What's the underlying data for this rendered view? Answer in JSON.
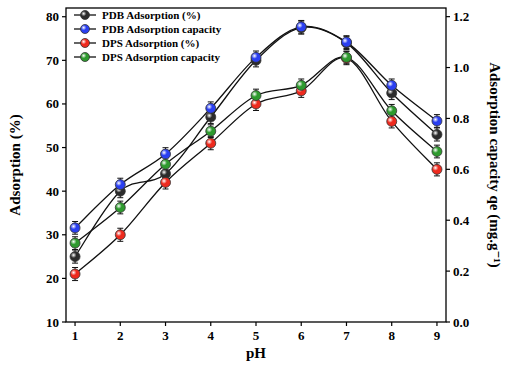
{
  "chart_data": {
    "type": "line",
    "x_label": "pH",
    "y_label": "Adsorption (%)",
    "y2_label": "Adsorption capacity qe (mg.g⁻¹)",
    "x": [
      1,
      2,
      3,
      4,
      5,
      6,
      7,
      8,
      9
    ],
    "xlim": [
      0.8,
      9.2
    ],
    "xticks": [
      1,
      2,
      3,
      4,
      5,
      6,
      7,
      8,
      9
    ],
    "ylim": [
      10,
      82
    ],
    "yticks": [
      10,
      20,
      30,
      40,
      50,
      60,
      70,
      80
    ],
    "y2lim": [
      0,
      1.234
    ],
    "y2ticks": [
      {
        "value": 0,
        "label": "0.0"
      },
      0.2,
      0.4,
      0.6,
      0.8,
      {
        "value": 1,
        "label": "1.0"
      },
      1.2
    ],
    "legend": "upper left",
    "grid": false,
    "marker": "circle",
    "series": [
      {
        "name": "PDB Adsorption (%)",
        "color": "#2b2b2b",
        "values": [
          25,
          40,
          44,
          57,
          70,
          77.5,
          74,
          62.5,
          53
        ],
        "errors": [
          1.5,
          1.5,
          1.5,
          1.5,
          1.5,
          1.5,
          1.5,
          1.5,
          1.5
        ]
      },
      {
        "name": "PDB Adsorption capacity",
        "color": "#2a3ff0",
        "axis": "y2",
        "values": [
          0.37,
          0.54,
          0.66,
          0.84,
          1.04,
          1.16,
          1.1,
          0.93,
          0.79
        ],
        "errors": [
          0.025,
          0.025,
          0.025,
          0.025,
          0.025,
          0.025,
          0.025,
          0.025,
          0.025
        ]
      },
      {
        "name": "DPS Adsorption (%)",
        "color": "#ee2a1e",
        "values": [
          21,
          30,
          42,
          51,
          60,
          63,
          70.5,
          56,
          45
        ],
        "errors": [
          1.5,
          1.5,
          1.5,
          1.5,
          1.5,
          1.5,
          1.5,
          1.5,
          1.5
        ]
      },
      {
        "name": "DPS Adsorption capacity",
        "color": "#2e9a2e",
        "axis": "y2",
        "values": [
          0.31,
          0.45,
          0.62,
          0.75,
          0.89,
          0.93,
          1.04,
          0.83,
          0.67
        ],
        "errors": [
          0.025,
          0.025,
          0.025,
          0.025,
          0.025,
          0.025,
          0.025,
          0.025,
          0.025
        ]
      }
    ]
  }
}
